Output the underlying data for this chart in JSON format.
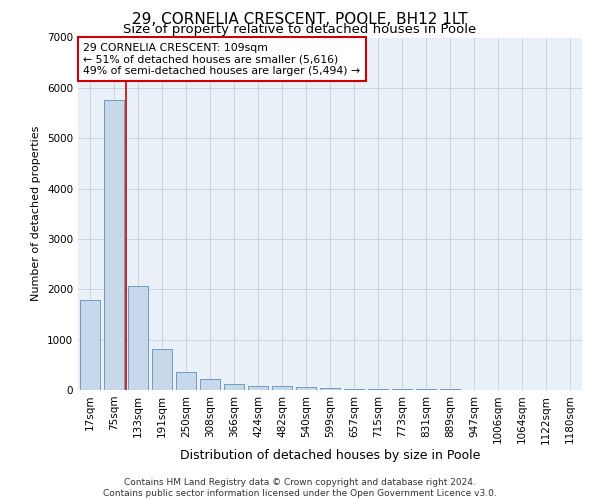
{
  "title": "29, CORNELIA CRESCENT, POOLE, BH12 1LT",
  "subtitle": "Size of property relative to detached houses in Poole",
  "xlabel": "Distribution of detached houses by size in Poole",
  "ylabel": "Number of detached properties",
  "bar_labels": [
    "17sqm",
    "75sqm",
    "133sqm",
    "191sqm",
    "250sqm",
    "308sqm",
    "366sqm",
    "424sqm",
    "482sqm",
    "540sqm",
    "599sqm",
    "657sqm",
    "715sqm",
    "773sqm",
    "831sqm",
    "889sqm",
    "947sqm",
    "1006sqm",
    "1064sqm",
    "1122sqm",
    "1180sqm"
  ],
  "bar_values": [
    1780,
    5750,
    2060,
    820,
    360,
    220,
    110,
    80,
    80,
    60,
    45,
    25,
    20,
    15,
    12,
    10,
    8,
    6,
    5,
    4,
    3
  ],
  "bar_color": "#c8d8eb",
  "bar_edge_color": "#6090b8",
  "grid_color": "#c5cfe0",
  "background_color": "#eaf0f8",
  "vline_color": "#cc0000",
  "annotation_text": "29 CORNELIA CRESCENT: 109sqm\n← 51% of detached houses are smaller (5,616)\n49% of semi-detached houses are larger (5,494) →",
  "annotation_box_color": "#ffffff",
  "annotation_box_edge": "#cc0000",
  "ylim": [
    0,
    7000
  ],
  "yticks": [
    0,
    1000,
    2000,
    3000,
    4000,
    5000,
    6000,
    7000
  ],
  "footer": "Contains HM Land Registry data © Crown copyright and database right 2024.\nContains public sector information licensed under the Open Government Licence v3.0.",
  "title_fontsize": 11,
  "subtitle_fontsize": 9.5,
  "xlabel_fontsize": 9,
  "ylabel_fontsize": 8,
  "tick_fontsize": 7.5,
  "footer_fontsize": 6.5
}
